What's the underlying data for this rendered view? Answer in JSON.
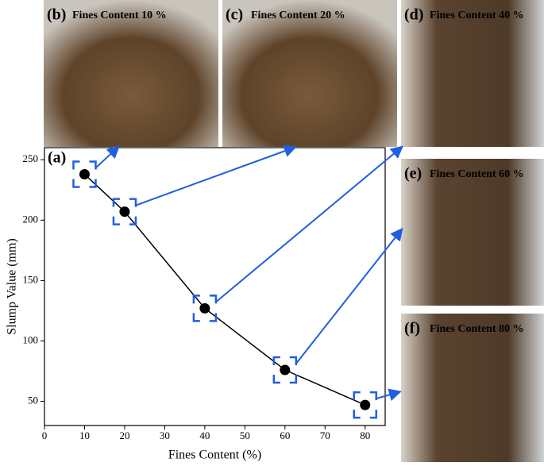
{
  "chart_data": {
    "type": "line",
    "panel_label": "(a)",
    "x_label": "Fines Content (%)",
    "y_label": "Slump Value (mm)",
    "x": [
      10,
      20,
      40,
      60,
      80
    ],
    "series": [
      {
        "color": "#000000",
        "values": [
          238,
          207,
          127,
          76,
          47
        ]
      }
    ],
    "xlim": [
      0,
      85
    ],
    "xticks": [
      0,
      10,
      20,
      30,
      40,
      50,
      60,
      70,
      80
    ],
    "ylim": [
      30,
      260
    ],
    "yticks": [
      50,
      100,
      150,
      200,
      250
    ]
  },
  "photos": [
    {
      "label": "(b)",
      "caption": "Fines Content 10 %"
    },
    {
      "label": "(c)",
      "caption": "Fines Content 20 %"
    },
    {
      "label": "(d)",
      "caption": "Fines Content 40 %"
    },
    {
      "label": "(e)",
      "caption": "Fines Content 60 %"
    },
    {
      "label": "(f)",
      "caption": "Fines Content 80 %"
    }
  ]
}
